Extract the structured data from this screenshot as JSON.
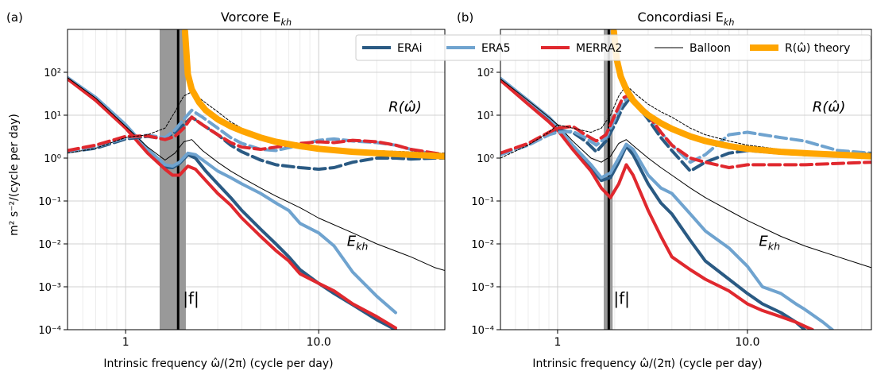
{
  "figure": {
    "xlabel": "Intrinsic frequency ω̂/(2π) (cycle per day)",
    "ylabel": "m² s⁻²/(cycle per day)"
  },
  "legend": {
    "entries": [
      {
        "label": "ERAi",
        "color": "#2a5a83"
      },
      {
        "label": "ERA5",
        "color": "#6fa3cf"
      },
      {
        "label": "MERRA2",
        "color": "#e0282e"
      },
      {
        "label": "Balloon",
        "color": "#000000"
      },
      {
        "label": "R(ω̂) theory",
        "color": "#ffa500"
      }
    ]
  },
  "chart_data": [
    {
      "type": "line",
      "panel_label": "(a)",
      "title": "Vorcore E_kh",
      "xscale": "log",
      "yscale": "log",
      "xlim": [
        0.5,
        45
      ],
      "ylim": [
        0.0001,
        1000
      ],
      "xticks": [
        1,
        10
      ],
      "xtick_labels": [
        "1",
        "10.0"
      ],
      "yticks": [
        0.0001,
        0.001,
        0.01,
        0.1,
        1,
        10,
        100
      ],
      "ytick_labels": [
        "10⁻⁴",
        "10⁻³",
        "10⁻²",
        "10⁻¹",
        "10⁰",
        "10¹",
        "10²"
      ],
      "f_band": [
        1.5,
        2.05
      ],
      "f_line": 1.87,
      "f_label": "|f|",
      "annotations": [
        {
          "text": "R(ω̂)",
          "x": 23,
          "y": 12
        },
        {
          "text": "E_kh",
          "x": 14,
          "y": 0.009
        }
      ],
      "series": [
        {
          "name": "ERAi",
          "kind": "E",
          "x": [
            0.5,
            0.7,
            1,
            1.3,
            1.6,
            1.75,
            1.9,
            2.1,
            2.3,
            2.6,
            3,
            3.5,
            4,
            5,
            6,
            7,
            8,
            10,
            12,
            15,
            20,
            25
          ],
          "y": [
            75,
            25,
            5.5,
            1.5,
            0.62,
            0.6,
            0.75,
            1.2,
            1.0,
            0.5,
            0.25,
            0.12,
            0.06,
            0.022,
            0.01,
            0.005,
            0.0025,
            0.0012,
            0.0007,
            0.00038,
            0.00017,
            0.0001
          ]
        },
        {
          "name": "ERA5",
          "kind": "E",
          "x": [
            0.5,
            0.7,
            1,
            1.3,
            1.6,
            1.75,
            1.9,
            2.1,
            2.3,
            2.6,
            3,
            3.5,
            4,
            5,
            6,
            7,
            8,
            10,
            12,
            15,
            20,
            25
          ],
          "y": [
            75,
            26,
            6,
            1.6,
            0.7,
            0.65,
            0.8,
            1.3,
            1.2,
            0.8,
            0.5,
            0.35,
            0.25,
            0.15,
            0.09,
            0.06,
            0.03,
            0.018,
            0.009,
            0.0022,
            0.0006,
            0.00025
          ]
        },
        {
          "name": "MERRA2",
          "kind": "E",
          "x": [
            0.5,
            0.7,
            1,
            1.3,
            1.6,
            1.75,
            1.9,
            2.1,
            2.3,
            2.6,
            3,
            3.5,
            4,
            5,
            6,
            7,
            8,
            10,
            12,
            15,
            20,
            25
          ],
          "y": [
            70,
            22,
            5,
            1.3,
            0.55,
            0.4,
            0.4,
            0.65,
            0.55,
            0.3,
            0.15,
            0.08,
            0.04,
            0.015,
            0.007,
            0.004,
            0.002,
            0.0012,
            0.0008,
            0.0004,
            0.0002,
            0.00011
          ]
        },
        {
          "name": "Balloon",
          "kind": "E",
          "x": [
            0.5,
            0.7,
            1,
            1.3,
            1.6,
            1.8,
            2,
            2.2,
            2.5,
            3,
            3.5,
            4,
            5,
            6,
            8,
            10,
            15,
            20,
            30,
            40,
            45
          ],
          "y": [
            75,
            25,
            5.5,
            1.8,
            0.9,
            1.3,
            2.4,
            2.7,
            1.5,
            0.8,
            0.5,
            0.35,
            0.2,
            0.13,
            0.07,
            0.04,
            0.018,
            0.01,
            0.005,
            0.0028,
            0.0024
          ]
        },
        {
          "name": "ERAi",
          "kind": "R",
          "x": [
            0.5,
            0.7,
            1,
            1.3,
            1.6,
            1.8,
            2,
            2.2,
            2.5,
            3,
            3.5,
            4,
            5,
            6,
            8,
            10,
            12,
            15,
            20,
            25,
            30,
            40,
            45
          ],
          "y": [
            1.4,
            1.7,
            2.8,
            3.2,
            2.8,
            4,
            6,
            9,
            6,
            3.5,
            2,
            1.4,
            0.9,
            0.7,
            0.6,
            0.55,
            0.6,
            0.8,
            1.0,
            1.0,
            0.95,
            1.0,
            1.0
          ]
        },
        {
          "name": "ERA5",
          "kind": "R",
          "x": [
            0.5,
            0.7,
            1,
            1.3,
            1.6,
            1.8,
            2,
            2.2,
            2.5,
            3,
            3.5,
            4,
            5,
            6,
            8,
            10,
            12,
            15,
            20,
            25,
            30,
            40,
            45
          ],
          "y": [
            1.4,
            1.8,
            3,
            3.4,
            3,
            4.5,
            8,
            13,
            9,
            5,
            3,
            2.2,
            1.6,
            1.5,
            2,
            2.6,
            2.8,
            2.5,
            2.3,
            2.0,
            1.6,
            1.2,
            1.1
          ]
        },
        {
          "name": "MERRA2",
          "kind": "R",
          "x": [
            0.5,
            0.7,
            1,
            1.3,
            1.6,
            1.8,
            2,
            2.2,
            2.5,
            3,
            3.5,
            4,
            5,
            6,
            8,
            10,
            12,
            15,
            20,
            25,
            30,
            40,
            45
          ],
          "y": [
            1.5,
            2,
            3.2,
            3.3,
            2.7,
            3.2,
            5,
            9,
            6,
            3.5,
            2.3,
            1.8,
            1.6,
            1.8,
            2.2,
            2.4,
            2.3,
            2.6,
            2.4,
            2.0,
            1.6,
            1.3,
            1.2
          ]
        },
        {
          "name": "Balloon",
          "kind": "R",
          "x": [
            0.5,
            0.7,
            1,
            1.3,
            1.6,
            1.8,
            2,
            2.2,
            2.5,
            3,
            3.5,
            4,
            5,
            6,
            8,
            10,
            15,
            20,
            30,
            40,
            45
          ],
          "y": [
            1.3,
            1.7,
            3,
            3.5,
            5,
            12,
            28,
            35,
            22,
            12,
            7,
            5,
            3.2,
            2.4,
            1.8,
            1.6,
            1.5,
            1.5,
            1.4,
            1.3,
            1.3
          ]
        },
        {
          "name": "R(ω̂) theory",
          "kind": "T",
          "x": [
            2.03,
            2.1,
            2.2,
            2.4,
            2.6,
            3,
            3.5,
            4,
            5,
            6,
            8,
            10,
            15,
            20,
            30,
            45
          ],
          "y": [
            900,
            90,
            40,
            20,
            13,
            8,
            5.5,
            4.3,
            3,
            2.4,
            1.9,
            1.65,
            1.4,
            1.3,
            1.2,
            1.1
          ]
        }
      ]
    },
    {
      "type": "line",
      "panel_label": "(b)",
      "title": "Concordiasi E_kh",
      "xscale": "log",
      "yscale": "log",
      "xlim": [
        0.5,
        45
      ],
      "ylim": [
        0.0001,
        1000
      ],
      "xticks": [
        1,
        10
      ],
      "xtick_labels": [
        "1",
        "10.0"
      ],
      "yticks": [
        0.0001,
        0.001,
        0.01,
        0.1,
        1,
        10,
        100
      ],
      "ytick_labels": [
        "10⁻⁴",
        "10⁻³",
        "10⁻²",
        "10⁻¹",
        "10⁰",
        "10¹",
        "10²"
      ],
      "f_band": [
        1.75,
        1.95
      ],
      "f_line": 1.86,
      "f_label": "|f|",
      "annotations": [
        {
          "text": "R(ω̂)",
          "x": 22,
          "y": 12
        },
        {
          "text": "E_kh",
          "x": 11.5,
          "y": 0.009
        }
      ],
      "series": [
        {
          "name": "ERAi",
          "kind": "E",
          "x": [
            0.5,
            0.7,
            0.9,
            1,
            1.2,
            1.5,
            1.7,
            1.9,
            2.1,
            2.3,
            2.5,
            3,
            3.5,
            4,
            5,
            6,
            8,
            10,
            12,
            15,
            18,
            20
          ],
          "y": [
            70,
            20,
            8,
            5,
            1.8,
            0.6,
            0.3,
            0.35,
            0.8,
            1.9,
            1.2,
            0.25,
            0.09,
            0.05,
            0.012,
            0.004,
            0.0015,
            0.0007,
            0.0004,
            0.00025,
            0.00015,
            0.0001
          ]
        },
        {
          "name": "ERA5",
          "kind": "E",
          "x": [
            0.5,
            0.7,
            0.9,
            1,
            1.2,
            1.5,
            1.7,
            1.9,
            2.1,
            2.3,
            2.5,
            3,
            3.5,
            4,
            5,
            6,
            8,
            10,
            12,
            15,
            18,
            20,
            25,
            28
          ],
          "y": [
            72,
            22,
            9,
            5.5,
            2,
            0.7,
            0.35,
            0.45,
            1,
            2.1,
            1.6,
            0.4,
            0.2,
            0.15,
            0.05,
            0.02,
            0.008,
            0.003,
            0.001,
            0.0007,
            0.0004,
            0.0003,
            0.00015,
            0.0001
          ]
        },
        {
          "name": "MERRA2",
          "kind": "E",
          "x": [
            0.5,
            0.7,
            0.9,
            1,
            1.2,
            1.5,
            1.7,
            1.9,
            2.1,
            2.3,
            2.5,
            3,
            3.5,
            4,
            5,
            6,
            8,
            10,
            12,
            15,
            18,
            22
          ],
          "y": [
            65,
            18,
            7,
            4.5,
            1.6,
            0.5,
            0.2,
            0.12,
            0.25,
            0.7,
            0.4,
            0.06,
            0.015,
            0.005,
            0.0025,
            0.0015,
            0.0008,
            0.0004,
            0.00028,
            0.0002,
            0.00015,
            0.0001
          ]
        },
        {
          "name": "Balloon",
          "kind": "E",
          "x": [
            0.5,
            0.7,
            0.9,
            1,
            1.2,
            1.5,
            1.7,
            1.9,
            2.1,
            2.3,
            2.6,
            3,
            3.5,
            4,
            5,
            6,
            8,
            10,
            15,
            20,
            30,
            40,
            45
          ],
          "y": [
            70,
            22,
            9,
            6,
            2.5,
            1,
            0.8,
            1.1,
            2.2,
            2.7,
            1.7,
            1,
            0.6,
            0.4,
            0.2,
            0.12,
            0.06,
            0.035,
            0.015,
            0.009,
            0.005,
            0.0033,
            0.0028
          ]
        },
        {
          "name": "ERAi",
          "kind": "R",
          "x": [
            0.5,
            0.7,
            0.9,
            1,
            1.2,
            1.4,
            1.6,
            1.8,
            2,
            2.2,
            2.4,
            2.6,
            3,
            3.5,
            4,
            5,
            6,
            8,
            10,
            15,
            20,
            30,
            45
          ],
          "y": [
            1.3,
            2,
            3.5,
            4.5,
            4,
            2.5,
            1.4,
            2.5,
            6,
            15,
            25,
            18,
            8,
            3,
            1.5,
            0.5,
            0.8,
            1.3,
            1.5,
            1.3,
            1.2,
            1.2,
            1.1
          ]
        },
        {
          "name": "ERA5",
          "kind": "R",
          "x": [
            0.5,
            0.7,
            0.9,
            1,
            1.2,
            1.4,
            1.6,
            1.8,
            2,
            2.2,
            2.4,
            2.6,
            3,
            3.5,
            4,
            5,
            6,
            8,
            10,
            15,
            20,
            30,
            45
          ],
          "y": [
            1.2,
            2,
            3.5,
            4,
            4.2,
            3,
            2,
            3,
            8,
            20,
            28,
            20,
            10,
            4,
            2,
            0.8,
            1.2,
            3.5,
            4,
            3,
            2.5,
            1.5,
            1.3
          ]
        },
        {
          "name": "MERRA2",
          "kind": "R",
          "x": [
            0.5,
            0.7,
            0.9,
            1,
            1.2,
            1.4,
            1.6,
            1.8,
            2,
            2.2,
            2.4,
            2.6,
            3,
            3.5,
            4,
            5,
            6,
            8,
            10,
            15,
            20,
            30,
            45
          ],
          "y": [
            1.3,
            2.2,
            4,
            5,
            5.5,
            3.5,
            2.5,
            3.5,
            10,
            25,
            30,
            20,
            10,
            4,
            2,
            1,
            0.8,
            0.6,
            0.7,
            0.7,
            0.7,
            0.75,
            0.8
          ]
        },
        {
          "name": "Balloon",
          "kind": "R",
          "x": [
            0.5,
            0.7,
            0.9,
            1,
            1.2,
            1.5,
            1.7,
            1.9,
            2.1,
            2.3,
            2.6,
            3,
            3.5,
            4,
            5,
            6,
            8,
            10,
            15,
            20,
            30,
            45
          ],
          "y": [
            1,
            2,
            4,
            6,
            5,
            4,
            5,
            10,
            28,
            50,
            30,
            18,
            12,
            9,
            5,
            3.5,
            2.5,
            2,
            1.6,
            1.4,
            1.3,
            1.3
          ]
        },
        {
          "name": "R(ω̂) theory",
          "kind": "T",
          "x": [
            1.98,
            2.05,
            2.15,
            2.3,
            2.5,
            2.8,
            3,
            3.5,
            4,
            5,
            6,
            8,
            10,
            15,
            20,
            30,
            45
          ],
          "y": [
            900,
            200,
            80,
            40,
            22,
            13,
            10,
            6.5,
            4.8,
            3.2,
            2.5,
            1.9,
            1.65,
            1.4,
            1.3,
            1.2,
            1.1
          ]
        }
      ]
    }
  ]
}
